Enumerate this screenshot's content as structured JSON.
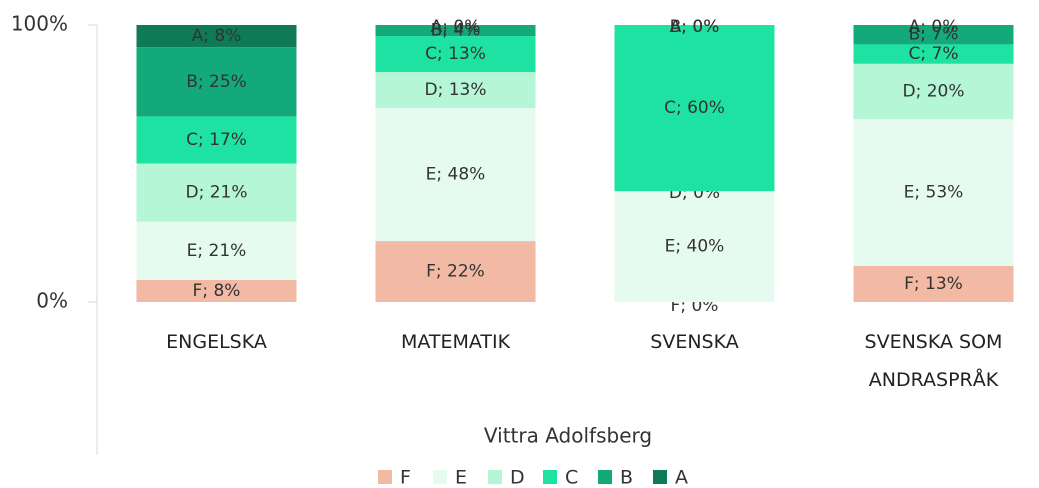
{
  "chart_data": {
    "type": "stacked_bar_100",
    "categories": [
      "ENGELSKA",
      "MATEMATIK",
      "SVENSKA",
      "SVENSKA SOM ANDRASPRÅK"
    ],
    "x_label": "Vittra Adolfsberg",
    "series": [
      {
        "name": "F",
        "color": "#f2b9a4",
        "values": [
          8,
          22,
          0,
          13
        ],
        "value_labels": [
          "F; 8%",
          "F; 22%",
          "F; 0%",
          "F; 13%"
        ]
      },
      {
        "name": "E",
        "color": "#e6fbf0",
        "values": [
          21,
          48,
          40,
          53
        ],
        "value_labels": [
          "E; 21%",
          "E; 48%",
          "E; 40%",
          "E; 53%"
        ]
      },
      {
        "name": "D",
        "color": "#b5f6d6",
        "values": [
          21,
          13,
          0,
          20
        ],
        "value_labels": [
          "D; 21%",
          "D; 13%",
          "D; 0%",
          "D; 20%"
        ]
      },
      {
        "name": "C",
        "color": "#1ee2a1",
        "values": [
          17,
          13,
          60,
          7
        ],
        "value_labels": [
          "C; 17%",
          "C; 13%",
          "C; 60%",
          "C; 7%"
        ]
      },
      {
        "name": "B",
        "color": "#14a97a",
        "values": [
          25,
          4,
          0,
          7
        ],
        "value_labels": [
          "B; 25%",
          "B; 4%",
          "B; 0%",
          "B; 7%"
        ]
      },
      {
        "name": "A",
        "color": "#0e7b56",
        "values": [
          8,
          0,
          0,
          0
        ],
        "value_labels": [
          "A; 8%",
          "A; 0%",
          "A; 0%",
          "A; 0%"
        ]
      }
    ],
    "ylim": [
      0,
      100
    ],
    "yticks": [
      {
        "value": 0,
        "label": "0%"
      },
      {
        "value": 100,
        "label": "100%"
      }
    ],
    "legend": "bottom"
  }
}
